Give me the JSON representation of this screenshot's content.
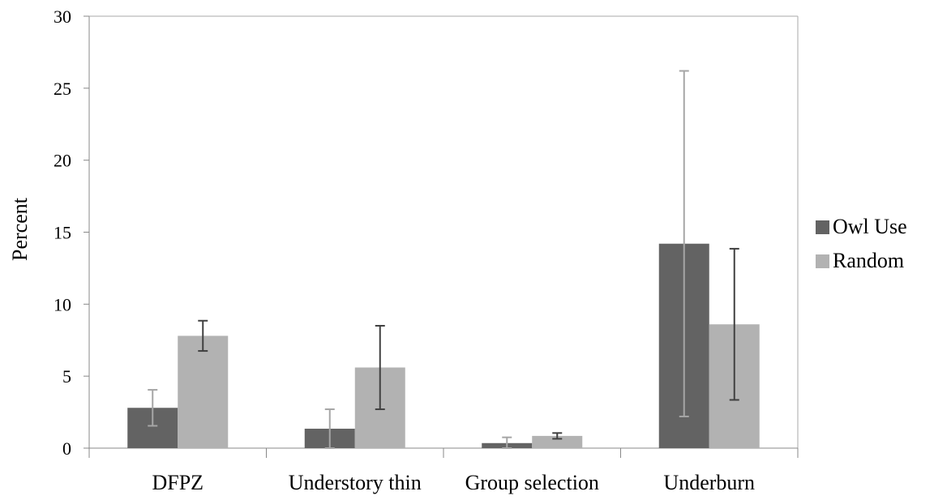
{
  "chart_data": {
    "type": "bar",
    "ylabel": "Percent",
    "xlabel": "",
    "ylim": [
      0,
      30
    ],
    "yticks": [
      0,
      5,
      10,
      15,
      20,
      25,
      30
    ],
    "grid": false,
    "legend_position": "right",
    "categories": [
      "DFPZ",
      "Understory thin",
      "Group selection",
      "Underburn"
    ],
    "series": [
      {
        "name": "Owl Use",
        "color": "#636363",
        "error_bar_color": "#a6a6a6",
        "values": [
          2.8,
          1.35,
          0.35,
          14.2
        ],
        "error": [
          1.25,
          1.35,
          0.4,
          12.0
        ]
      },
      {
        "name": "Random",
        "color": "#b2b2b2",
        "error_bar_color": "#404040",
        "values": [
          7.8,
          5.6,
          0.85,
          8.6
        ],
        "error": [
          1.05,
          2.9,
          0.2,
          5.25
        ]
      }
    ]
  }
}
